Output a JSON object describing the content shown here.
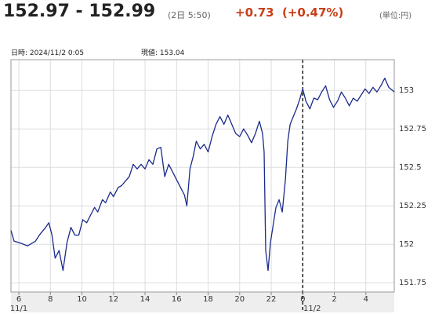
{
  "header": {
    "price": "152.97 - 152.99",
    "time": "(2日 5:50)",
    "change": "+0.73",
    "change_pct": "(+0.47%)",
    "unit": "(単位:円)"
  },
  "info": {
    "datetime": "日時: 2024/11/2  0:05",
    "current": "現値: 153.04"
  },
  "chart_data": {
    "type": "line",
    "x": [
      5.5,
      5.7,
      6.05,
      6.55,
      7.05,
      7.3,
      7.7,
      7.9,
      8.1,
      8.3,
      8.55,
      8.8,
      9.05,
      9.3,
      9.55,
      9.8,
      10.05,
      10.3,
      10.55,
      10.8,
      11.0,
      11.3,
      11.5,
      11.8,
      12.0,
      12.3,
      12.5,
      12.75,
      13.0,
      13.25,
      13.5,
      13.75,
      14.0,
      14.25,
      14.5,
      14.75,
      15.0,
      15.25,
      15.5,
      15.75,
      16.0,
      16.25,
      16.5,
      16.65,
      16.85,
      17.05,
      17.25,
      17.5,
      17.75,
      18.0,
      18.25,
      18.5,
      18.75,
      19.0,
      19.25,
      19.5,
      19.75,
      20.0,
      20.25,
      20.5,
      20.75,
      21.0,
      21.25,
      21.45,
      21.55,
      21.65,
      21.8,
      21.95,
      22.1,
      22.3,
      22.5,
      22.7,
      22.9,
      23.05,
      23.2,
      23.4,
      23.6,
      23.8,
      24.0,
      24.2,
      24.45,
      24.7,
      24.95,
      25.2,
      25.45,
      25.7,
      25.95,
      26.2,
      26.45,
      26.7,
      26.95,
      27.2,
      27.45,
      27.7,
      27.95,
      28.2,
      28.45,
      28.7,
      28.95,
      29.2,
      29.45,
      29.7,
      29.8
    ],
    "series": [
      {
        "color": "#1a2a8c",
        "values": [
          152.09,
          152.02,
          152.01,
          151.99,
          152.02,
          152.06,
          152.11,
          152.14,
          152.06,
          151.91,
          151.96,
          151.83,
          152.01,
          152.11,
          152.06,
          152.06,
          152.16,
          152.14,
          152.19,
          152.24,
          152.21,
          152.29,
          152.27,
          152.34,
          152.31,
          152.37,
          152.38,
          152.41,
          152.44,
          152.52,
          152.49,
          152.52,
          152.49,
          152.55,
          152.52,
          152.62,
          152.63,
          152.44,
          152.52,
          152.47,
          152.42,
          152.37,
          152.32,
          152.25,
          152.49,
          152.57,
          152.67,
          152.62,
          152.65,
          152.6,
          152.7,
          152.78,
          152.83,
          152.78,
          152.84,
          152.78,
          152.72,
          152.7,
          152.75,
          152.71,
          152.66,
          152.72,
          152.8,
          152.72,
          152.6,
          151.96,
          151.83,
          152.01,
          152.11,
          152.24,
          152.29,
          152.21,
          152.42,
          152.67,
          152.78,
          152.83,
          152.88,
          152.94,
          153.01,
          152.93,
          152.88,
          152.95,
          152.94,
          152.99,
          153.03,
          152.94,
          152.89,
          152.93,
          152.99,
          152.95,
          152.9,
          152.95,
          152.93,
          152.97,
          153.01,
          152.98,
          153.02,
          152.99,
          153.03,
          153.08,
          153.02,
          153.0,
          152.99
        ]
      }
    ],
    "xlim": [
      5.5,
      29.8
    ],
    "ylim": [
      151.69,
      153.2
    ],
    "xticks": [
      6,
      8,
      10,
      12,
      14,
      16,
      18,
      20,
      22,
      {
        "value": 24,
        "label": "0"
      },
      {
        "value": 26,
        "label": "2"
      },
      {
        "value": 28,
        "label": "4"
      }
    ],
    "yticks": [
      151.75,
      152,
      152.25,
      152.5,
      152.75,
      153
    ],
    "date_labels": [
      {
        "value": 6,
        "label": "11/1"
      },
      {
        "value": 24,
        "label": "11/2"
      }
    ],
    "grid": true
  }
}
